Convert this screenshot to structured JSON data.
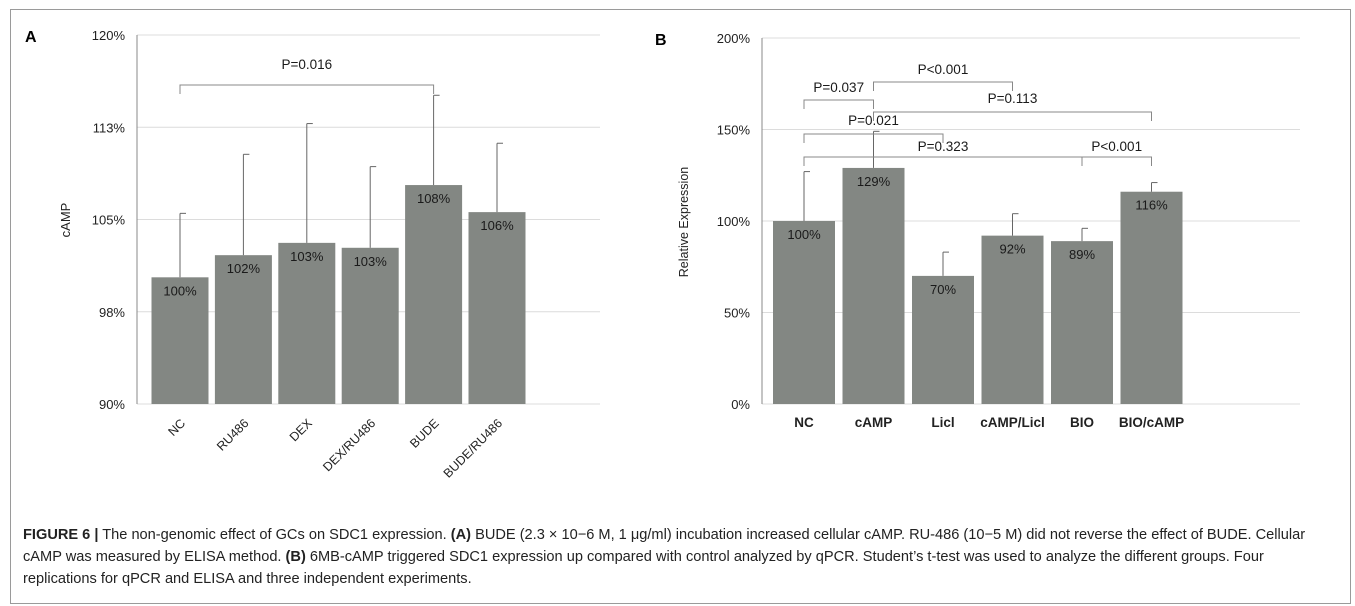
{
  "chart_data": [
    {
      "panel": "A",
      "type": "bar",
      "categories": [
        "NC",
        "RU486",
        "DEX",
        "DEX/RU486",
        "BUDE",
        "BUDE/RU486"
      ],
      "values": [
        100.3,
        102.1,
        103.1,
        102.7,
        107.8,
        105.6
      ],
      "errors": [
        5.2,
        8.2,
        9.7,
        6.6,
        7.3,
        5.6
      ],
      "value_labels": [
        "100%",
        "102%",
        "103%",
        "103%",
        "108%",
        "106%"
      ],
      "ylabel": "cAMP",
      "ylim": [
        90,
        120
      ],
      "yticks": [
        90,
        97.5,
        105,
        112.5,
        120
      ],
      "ytick_labels": [
        "90%",
        "98%",
        "105%",
        "113%",
        "120%"
      ],
      "grid": true,
      "bar_color": "#838783",
      "comparisons": [
        {
          "from": 0,
          "to": 4,
          "label": "P=0.016"
        }
      ]
    },
    {
      "panel": "B",
      "type": "bar",
      "categories": [
        "NC",
        "cAMP",
        "Licl",
        "cAMP/Licl",
        "BIO",
        "BIO/cAMP"
      ],
      "values": [
        100,
        129,
        70,
        92,
        89,
        116
      ],
      "errors": [
        27,
        20,
        13,
        12,
        7,
        5
      ],
      "value_labels": [
        "100%",
        "129%",
        "70%",
        "92%",
        "89%",
        "116%"
      ],
      "ylabel": "Relative Expression",
      "ylim": [
        0,
        200
      ],
      "yticks": [
        0,
        50,
        100,
        150,
        200
      ],
      "ytick_labels": [
        "0%",
        "50%",
        "100%",
        "150%",
        "200%"
      ],
      "grid": true,
      "bar_color": "#838783",
      "comparisons": [
        {
          "from": 0,
          "to": 1,
          "label": "P=0.037"
        },
        {
          "from": 1,
          "to": 3,
          "label": "P<0.001"
        },
        {
          "from": 1,
          "to": 5,
          "label": "P=0.113"
        },
        {
          "from": 0,
          "to": 2,
          "label": "P=0.021"
        },
        {
          "from": 0,
          "to": 4,
          "label": "P=0.323"
        },
        {
          "from": 4,
          "to": 5,
          "label": "P<0.001"
        }
      ]
    }
  ],
  "caption": {
    "figure_label": "FIGURE 6 |",
    "intro": " The non-genomic effect of GCs on SDC1 expression. ",
    "part_a_label": "(A)",
    "part_a_text": " BUDE (2.3 × 10−6 M, 1 μg/ml) incubation increased cellular cAMP. RU-486 (10−5 M) did not reverse the effect of BUDE. Cellular cAMP was measured by ELISA method. ",
    "part_b_label": "(B)",
    "part_b_text": " 6MB-cAMP triggered SDC1 expression up compared with control analyzed by qPCR. Student’s t-test was used to analyze the different groups. Four replications for qPCR and ELISA and three independent experiments."
  }
}
